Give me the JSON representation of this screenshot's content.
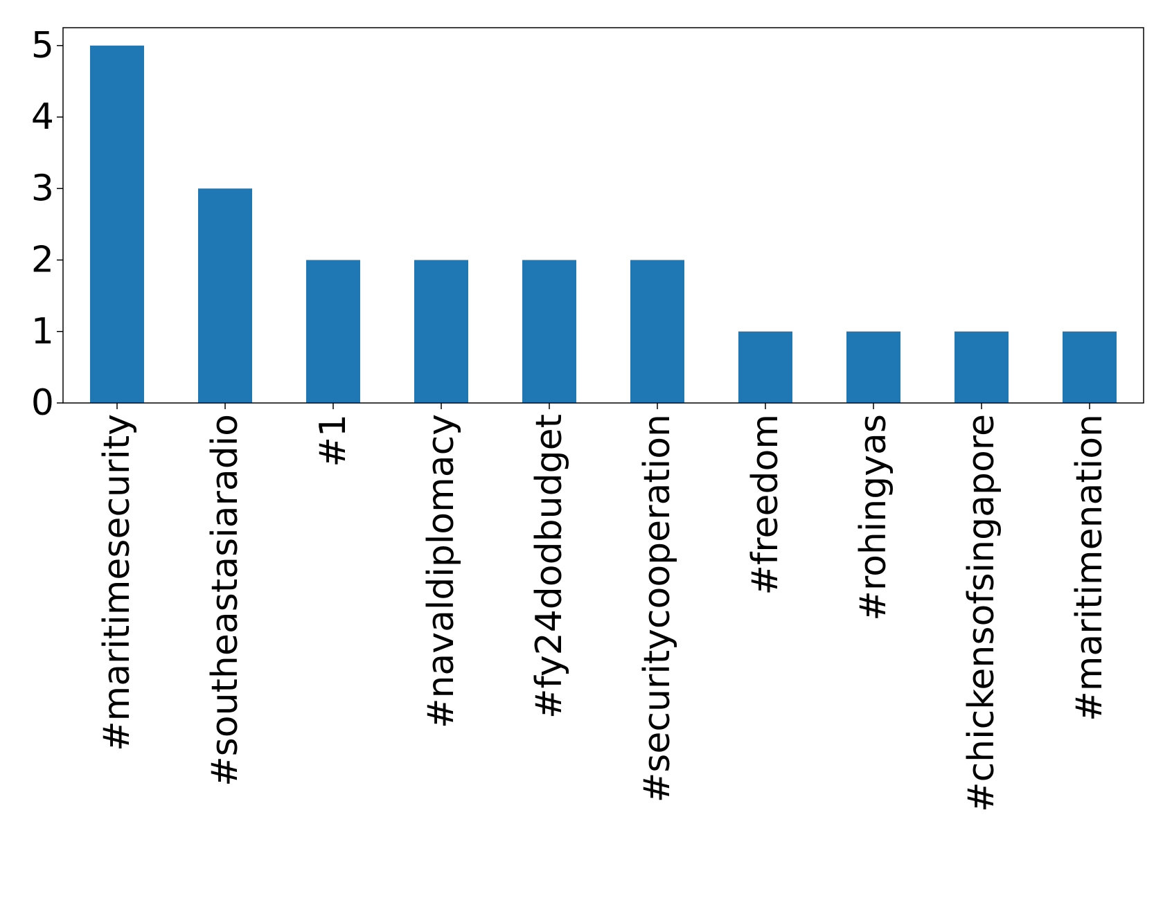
{
  "chart_data": {
    "type": "bar",
    "categories": [
      "#maritimesecurity",
      "#southeastasiaradio",
      "#1",
      "#navaldiplomacy",
      "#fy24dodbudget",
      "#securitycooperation",
      "#freedom",
      "#rohingyas",
      "#chickensofsingapore",
      "#maritimenation"
    ],
    "values": [
      5,
      3,
      2,
      2,
      2,
      2,
      1,
      1,
      1,
      1
    ],
    "title": "",
    "xlabel": "",
    "ylabel": "",
    "ylim": [
      0,
      5.25
    ],
    "yticks": [
      "0",
      "1",
      "2",
      "3",
      "4",
      "5"
    ],
    "grid": false,
    "legend": "none",
    "colors": {
      "bar": "#1f77b4",
      "axis": "#000000",
      "background": "#ffffff"
    }
  }
}
